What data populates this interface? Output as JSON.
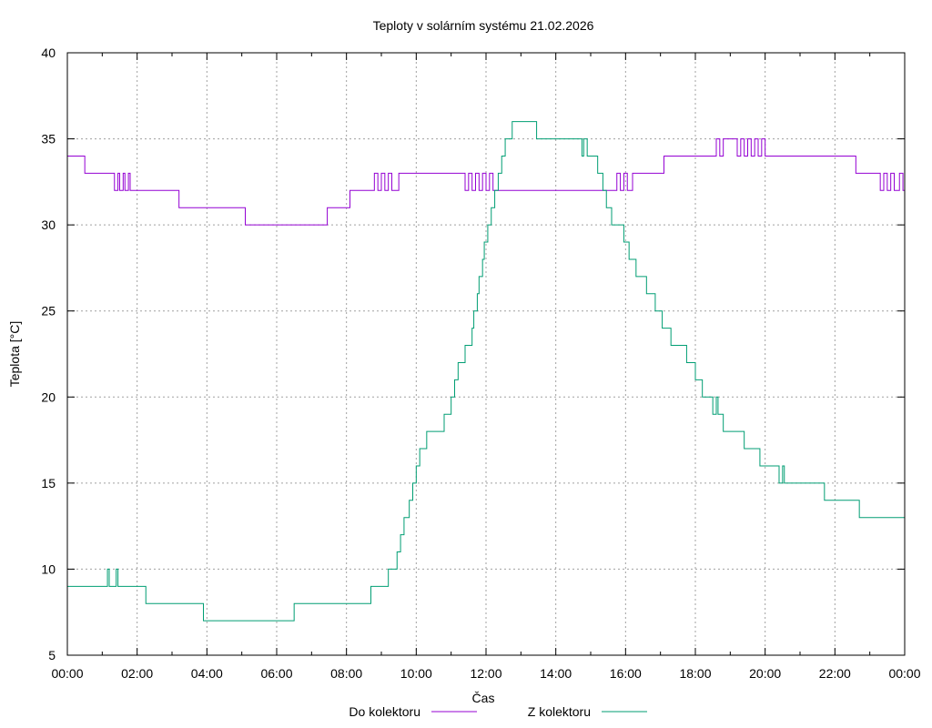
{
  "chart_data": {
    "type": "line",
    "title": "Teploty v solárním systému 21.02.2026",
    "xlabel": "Čas",
    "ylabel": "Teplota [°C]",
    "ylim": [
      5,
      40
    ],
    "xlim": [
      0,
      24
    ],
    "y_ticks": [
      5,
      10,
      15,
      20,
      25,
      30,
      35,
      40
    ],
    "x_ticks": [
      0,
      2,
      4,
      6,
      8,
      10,
      12,
      14,
      16,
      18,
      20,
      22,
      24
    ],
    "x_tick_labels": [
      "00:00",
      "02:00",
      "04:00",
      "06:00",
      "08:00",
      "10:00",
      "12:00",
      "14:00",
      "16:00",
      "18:00",
      "20:00",
      "22:00",
      "00:00"
    ],
    "grid": true,
    "legend_position": "bottom",
    "series": [
      {
        "name": "Do kolektoru",
        "color": "#9400d3",
        "step": true,
        "points": [
          [
            0.0,
            34
          ],
          [
            0.5,
            33
          ],
          [
            1.35,
            32
          ],
          [
            1.45,
            33
          ],
          [
            1.5,
            32
          ],
          [
            1.6,
            33
          ],
          [
            1.65,
            32
          ],
          [
            1.75,
            33
          ],
          [
            1.8,
            32
          ],
          [
            3.2,
            31
          ],
          [
            5.1,
            30
          ],
          [
            7.45,
            31
          ],
          [
            8.1,
            32
          ],
          [
            8.8,
            33
          ],
          [
            8.9,
            32
          ],
          [
            9.0,
            33
          ],
          [
            9.1,
            32
          ],
          [
            9.2,
            33
          ],
          [
            9.3,
            32
          ],
          [
            9.5,
            33
          ],
          [
            11.4,
            32
          ],
          [
            11.5,
            33
          ],
          [
            11.6,
            32
          ],
          [
            11.7,
            33
          ],
          [
            11.8,
            32
          ],
          [
            11.9,
            33
          ],
          [
            12.0,
            32
          ],
          [
            12.1,
            33
          ],
          [
            12.2,
            32
          ],
          [
            15.5,
            32
          ],
          [
            15.75,
            33
          ],
          [
            15.85,
            32
          ],
          [
            15.95,
            33
          ],
          [
            16.05,
            32
          ],
          [
            16.2,
            33
          ],
          [
            17.1,
            34
          ],
          [
            18.6,
            35
          ],
          [
            18.7,
            34
          ],
          [
            18.8,
            35
          ],
          [
            19.2,
            34
          ],
          [
            19.3,
            35
          ],
          [
            19.4,
            34
          ],
          [
            19.5,
            35
          ],
          [
            19.6,
            34
          ],
          [
            19.7,
            35
          ],
          [
            19.8,
            34
          ],
          [
            19.9,
            35
          ],
          [
            20.0,
            34
          ],
          [
            22.6,
            33
          ],
          [
            23.3,
            32
          ],
          [
            23.4,
            33
          ],
          [
            23.5,
            32
          ],
          [
            23.6,
            33
          ],
          [
            23.7,
            32
          ],
          [
            23.85,
            33
          ],
          [
            23.95,
            32
          ],
          [
            24.0,
            32
          ]
        ]
      },
      {
        "name": "Z kolektoru",
        "color": "#009e73",
        "step": true,
        "points": [
          [
            0.0,
            9
          ],
          [
            1.15,
            10
          ],
          [
            1.2,
            9
          ],
          [
            1.4,
            10
          ],
          [
            1.45,
            9
          ],
          [
            2.25,
            8
          ],
          [
            3.9,
            7
          ],
          [
            6.5,
            8
          ],
          [
            8.7,
            9
          ],
          [
            9.2,
            10
          ],
          [
            9.45,
            11
          ],
          [
            9.55,
            12
          ],
          [
            9.65,
            13
          ],
          [
            9.8,
            14
          ],
          [
            9.9,
            15
          ],
          [
            10.0,
            16
          ],
          [
            10.1,
            17
          ],
          [
            10.3,
            18
          ],
          [
            10.8,
            19
          ],
          [
            11.0,
            20
          ],
          [
            11.1,
            21
          ],
          [
            11.2,
            22
          ],
          [
            11.4,
            23
          ],
          [
            11.6,
            24
          ],
          [
            11.65,
            25
          ],
          [
            11.75,
            26
          ],
          [
            11.8,
            27
          ],
          [
            11.9,
            28
          ],
          [
            11.95,
            29
          ],
          [
            12.05,
            30
          ],
          [
            12.15,
            31
          ],
          [
            12.25,
            32
          ],
          [
            12.35,
            33
          ],
          [
            12.45,
            34
          ],
          [
            12.55,
            35
          ],
          [
            12.75,
            36
          ],
          [
            13.45,
            35
          ],
          [
            14.75,
            34
          ],
          [
            14.8,
            35
          ],
          [
            14.9,
            34
          ],
          [
            15.2,
            33
          ],
          [
            15.35,
            32
          ],
          [
            15.45,
            31
          ],
          [
            15.6,
            30
          ],
          [
            15.95,
            29
          ],
          [
            16.1,
            28
          ],
          [
            16.3,
            27
          ],
          [
            16.6,
            26
          ],
          [
            16.85,
            25
          ],
          [
            17.05,
            24
          ],
          [
            17.3,
            23
          ],
          [
            17.75,
            22
          ],
          [
            18.0,
            21
          ],
          [
            18.2,
            20
          ],
          [
            18.5,
            19
          ],
          [
            18.6,
            20
          ],
          [
            18.65,
            19
          ],
          [
            18.8,
            18
          ],
          [
            19.4,
            17
          ],
          [
            19.85,
            16
          ],
          [
            20.4,
            15
          ],
          [
            20.5,
            16
          ],
          [
            20.55,
            15
          ],
          [
            21.7,
            14
          ],
          [
            22.7,
            13
          ],
          [
            24.0,
            13
          ]
        ]
      }
    ]
  }
}
